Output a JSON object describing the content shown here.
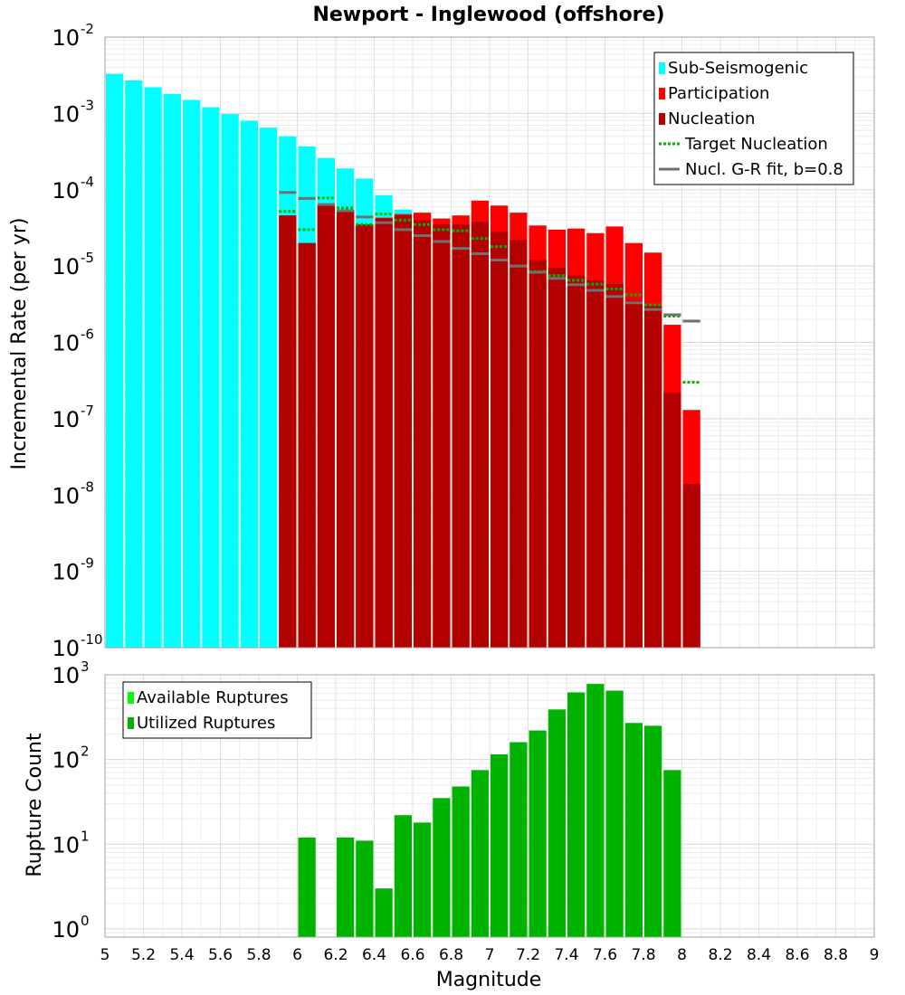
{
  "chart_data": [
    {
      "type": "bar",
      "title": "Newport - Inglewood (offshore)",
      "xlabel": "",
      "ylabel": "Incremental Rate (per yr)",
      "yscale": "log",
      "xlim": [
        5,
        9
      ],
      "ylim": [
        1e-10,
        0.01
      ],
      "y_ticks": [
        {
          "base": "10",
          "exp": "-10",
          "value": 1e-10
        },
        {
          "base": "10",
          "exp": "-9",
          "value": 1e-09
        },
        {
          "base": "10",
          "exp": "-8",
          "value": 1e-08
        },
        {
          "base": "10",
          "exp": "-7",
          "value": 1e-07
        },
        {
          "base": "10",
          "exp": "-6",
          "value": 1e-06
        },
        {
          "base": "10",
          "exp": "-5",
          "value": 1e-05
        },
        {
          "base": "10",
          "exp": "-4",
          "value": 0.0001
        },
        {
          "base": "10",
          "exp": "-3",
          "value": 0.001
        },
        {
          "base": "10",
          "exp": "-2",
          "value": 0.01
        }
      ],
      "grid": true,
      "legend_position": "top-right",
      "legend": [
        {
          "label": "Sub-Seismogenic",
          "color": "#00ffff",
          "style": "bar"
        },
        {
          "label": "Participation",
          "color": "#ff0000",
          "style": "bar"
        },
        {
          "label": "Nucleation",
          "color": "#b30000",
          "style": "bar"
        },
        {
          "label": "Target Nucleation",
          "color": "#00b300",
          "style": "dotted-line"
        },
        {
          "label": "Nucl. G-R fit, b=0.8",
          "color": "#707070",
          "style": "line"
        }
      ],
      "series": [
        {
          "name": "Sub-Seismogenic",
          "color": "#00ffff",
          "x": [
            5.05,
            5.15,
            5.25,
            5.35,
            5.45,
            5.55,
            5.65,
            5.75,
            5.85,
            5.95,
            6.05,
            6.15,
            6.25,
            6.35,
            6.45,
            6.55
          ],
          "values": [
            0.0033,
            0.0027,
            0.0022,
            0.0018,
            0.0015,
            0.0012,
            0.00098,
            0.0008,
            0.00065,
            0.0005,
            0.00037,
            0.00026,
            0.00019,
            0.00014,
            8.5e-05,
            5.5e-05
          ]
        },
        {
          "name": "Participation",
          "color": "#ff0000",
          "x": [
            5.95,
            6.05,
            6.15,
            6.25,
            6.35,
            6.45,
            6.55,
            6.65,
            6.75,
            6.85,
            6.95,
            7.05,
            7.15,
            7.25,
            7.35,
            7.45,
            7.55,
            7.65,
            7.75,
            7.85,
            7.95,
            8.05
          ],
          "values": [
            4.6e-05,
            2e-05,
            6.2e-05,
            5.5e-05,
            3.5e-05,
            4.3e-05,
            4.8e-05,
            5e-05,
            4.2e-05,
            4.6e-05,
            7.2e-05,
            6.2e-05,
            5e-05,
            3.4e-05,
            3e-05,
            3.1e-05,
            2.7e-05,
            3.3e-05,
            2e-05,
            1.5e-05,
            1.7e-06,
            1.3e-07
          ]
        },
        {
          "name": "Nucleation",
          "color": "#b30000",
          "x": [
            5.95,
            6.05,
            6.15,
            6.25,
            6.35,
            6.45,
            6.55,
            6.65,
            6.75,
            6.85,
            6.95,
            7.05,
            7.15,
            7.25,
            7.35,
            7.45,
            7.55,
            7.65,
            7.75,
            7.85,
            7.95,
            8.05
          ],
          "values": [
            4.6e-05,
            2e-05,
            6.2e-05,
            5.5e-05,
            3.5e-05,
            4.2e-05,
            4.6e-05,
            4e-05,
            3.5e-05,
            3.5e-05,
            3.8e-05,
            2.8e-05,
            2.2e-05,
            1.2e-05,
            9.5e-06,
            7.5e-06,
            6.5e-06,
            5.8e-06,
            3.5e-06,
            3e-06,
            2.2e-07,
            1.4e-08
          ]
        },
        {
          "name": "Target Nucleation",
          "color": "#00b300",
          "x": [
            5.95,
            6.05,
            6.15,
            6.25,
            6.35,
            6.45,
            6.55,
            6.65,
            6.75,
            6.85,
            6.95,
            7.05,
            7.15,
            7.25,
            7.35,
            7.45,
            7.55,
            7.65,
            7.75,
            7.85,
            7.95,
            8.05
          ],
          "values": [
            5.2e-05,
            3e-05,
            7.8e-05,
            5.8e-05,
            3.5e-05,
            4.8e-05,
            4e-05,
            3.5e-05,
            3e-05,
            2.9e-05,
            2.3e-05,
            1.8e-05,
            1e-05,
            8.5e-06,
            7.5e-06,
            6.5e-06,
            5.8e-06,
            5e-06,
            4.2e-06,
            3.1e-06,
            2.2e-06,
            3e-07
          ]
        },
        {
          "name": "Nucl. G-R fit, b=0.8",
          "color": "#707070",
          "x": [
            5.95,
            6.05,
            6.15,
            6.25,
            6.35,
            6.45,
            6.55,
            6.65,
            6.75,
            6.85,
            6.95,
            7.05,
            7.15,
            7.25,
            7.35,
            7.45,
            7.55,
            7.65,
            7.75,
            7.85,
            7.95,
            8.05
          ],
          "values": [
            9.2e-05,
            7.7e-05,
            6.4e-05,
            5.3e-05,
            4.4e-05,
            3.7e-05,
            3e-05,
            2.5e-05,
            2.1e-05,
            1.7e-05,
            1.45e-05,
            1.2e-05,
            1e-05,
            8.3e-06,
            6.9e-06,
            5.7e-06,
            4.8e-06,
            4e-06,
            3.3e-06,
            2.7e-06,
            2.3e-06,
            1.9e-06
          ]
        }
      ]
    },
    {
      "type": "bar",
      "title": "",
      "xlabel": "Magnitude",
      "ylabel": "Rupture Count",
      "yscale": "log",
      "xlim": [
        5,
        9
      ],
      "ylim": [
        0.8,
        1000
      ],
      "y_ticks": [
        {
          "base": "10",
          "exp": "0",
          "value": 1
        },
        {
          "base": "10",
          "exp": "1",
          "value": 10
        },
        {
          "base": "10",
          "exp": "2",
          "value": 100
        },
        {
          "base": "10",
          "exp": "3",
          "value": 1000
        }
      ],
      "x_ticks": [
        "5",
        "5.2",
        "5.4",
        "5.6",
        "5.8",
        "6",
        "6.2",
        "6.4",
        "6.6",
        "6.8",
        "7",
        "7.2",
        "7.4",
        "7.6",
        "7.8",
        "8",
        "8.2",
        "8.4",
        "8.6",
        "8.8",
        "9"
      ],
      "grid": true,
      "legend_position": "top-left",
      "legend": [
        {
          "label": "Available Ruptures",
          "color": "#00ff00",
          "style": "bar"
        },
        {
          "label": "Utilized Ruptures",
          "color": "#00b300",
          "style": "bar"
        }
      ],
      "series": [
        {
          "name": "Utilized Ruptures",
          "color": "#00b300",
          "x": [
            6.05,
            6.25,
            6.35,
            6.45,
            6.55,
            6.65,
            6.75,
            6.85,
            6.95,
            7.05,
            7.15,
            7.25,
            7.35,
            7.45,
            7.55,
            7.65,
            7.75,
            7.85,
            7.95
          ],
          "values": [
            12,
            12,
            11,
            3,
            22,
            18,
            35,
            48,
            75,
            115,
            160,
            220,
            390,
            620,
            780,
            650,
            270,
            250,
            75
          ]
        }
      ]
    }
  ]
}
